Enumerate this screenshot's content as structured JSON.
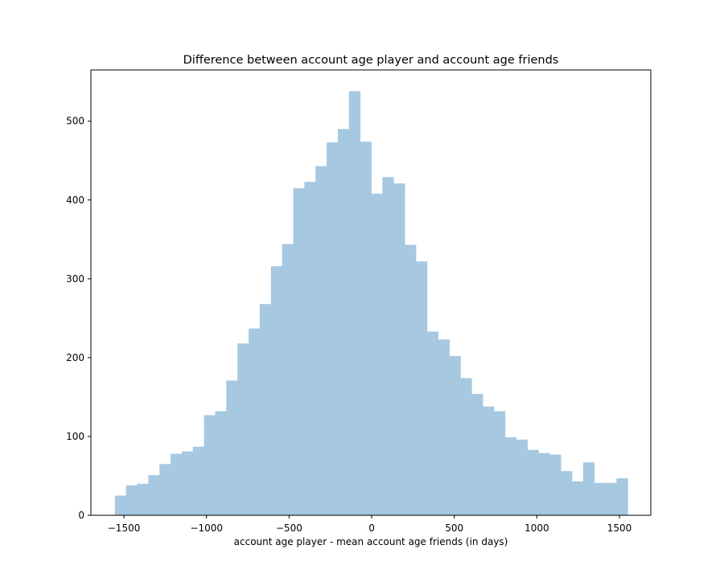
{
  "chart_data": {
    "type": "bar",
    "title": "Difference between account age player and account age friends",
    "xlabel": "account age player -  mean account age friends (in days)",
    "ylabel": "",
    "xlim": [
      -1700,
      1690
    ],
    "ylim": [
      0,
      565
    ],
    "x_ticks": [
      -1500,
      -1000,
      -500,
      0,
      500,
      1000,
      1500
    ],
    "x_tick_labels": [
      "−1500",
      "−1000",
      "−500",
      "0",
      "500",
      "1000",
      "1500"
    ],
    "y_ticks": [
      0,
      100,
      200,
      300,
      400,
      500
    ],
    "y_tick_labels": [
      "0",
      "100",
      "200",
      "300",
      "400",
      "500"
    ],
    "grid": false,
    "legend": "none",
    "bar_color": "#a6c8e0",
    "bin_start": -1555,
    "bin_width": 67.5,
    "values": [
      25,
      38,
      40,
      51,
      65,
      78,
      81,
      87,
      127,
      132,
      171,
      218,
      237,
      268,
      316,
      344,
      415,
      423,
      443,
      473,
      490,
      538,
      474,
      408,
      429,
      421,
      343,
      322,
      233,
      223,
      202,
      174,
      154,
      138,
      132,
      99,
      96,
      83,
      79,
      77,
      56,
      43,
      67,
      41,
      41,
      47
    ]
  }
}
